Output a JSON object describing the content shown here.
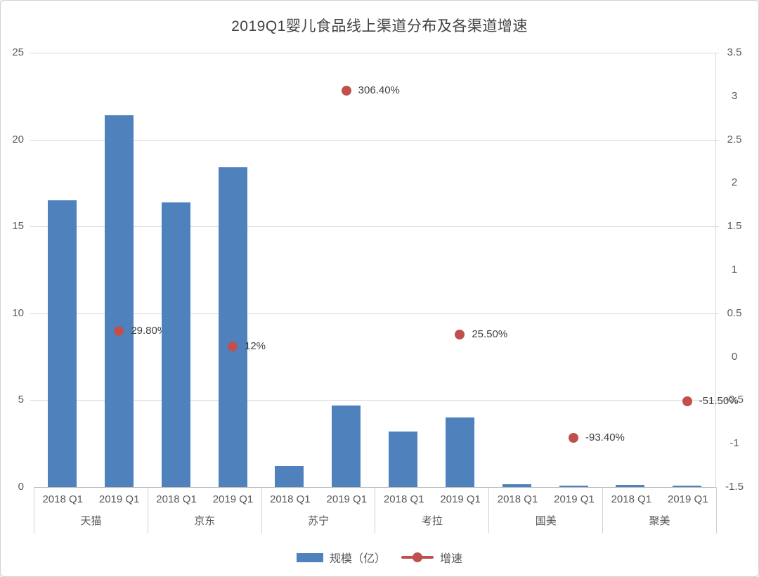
{
  "title": "2019Q1婴儿食品线上渠道分布及各渠道增速",
  "colors": {
    "bar": "#4f81bd",
    "dot": "#c0504d",
    "grid": "#d9d9d9",
    "axis_line": "#b9b9b9",
    "tick_text": "#595959",
    "data_label_text": "#404040"
  },
  "legend": {
    "bar_label": "规模（亿）",
    "line_label": "增速"
  },
  "chart_data": {
    "type": "bar",
    "subtype": "grouped bars with secondary-axis scatter (combo chart)",
    "title": "2019Q1婴儿食品线上渠道分布及各渠道增速",
    "categories": [
      "天猫",
      "京东",
      "苏宁",
      "考拉",
      "国美",
      "聚美"
    ],
    "bar_subgroups": [
      "2018 Q1",
      "2019 Q1"
    ],
    "series": [
      {
        "name": "规模（亿）",
        "type": "bar",
        "axis": "left",
        "values": [
          [
            16.5,
            21.4
          ],
          [
            16.4,
            18.4
          ],
          [
            1.2,
            4.7
          ],
          [
            3.2,
            4.0
          ],
          [
            0.15,
            0.05
          ],
          [
            0.12,
            0.06
          ]
        ]
      },
      {
        "name": "增速",
        "type": "scatter",
        "axis": "right",
        "values": [
          0.298,
          0.12,
          3.064,
          0.255,
          -0.934,
          -0.515
        ],
        "labels": [
          "29.80%",
          "12%",
          "306.40%",
          "25.50%",
          "-93.40%",
          "-51.50%"
        ]
      }
    ],
    "left_axis": {
      "min": 0,
      "max": 25,
      "ticks": [
        0,
        5,
        10,
        15,
        20,
        25
      ]
    },
    "right_axis": {
      "min": -1.5,
      "max": 3.5,
      "ticks": [
        3.5,
        3,
        2.5,
        2,
        1.5,
        1,
        0.5,
        0,
        -0.5,
        -1,
        -1.5
      ]
    },
    "grid": "horizontal gridlines at left-axis major ticks",
    "legend_position": "bottom center"
  }
}
